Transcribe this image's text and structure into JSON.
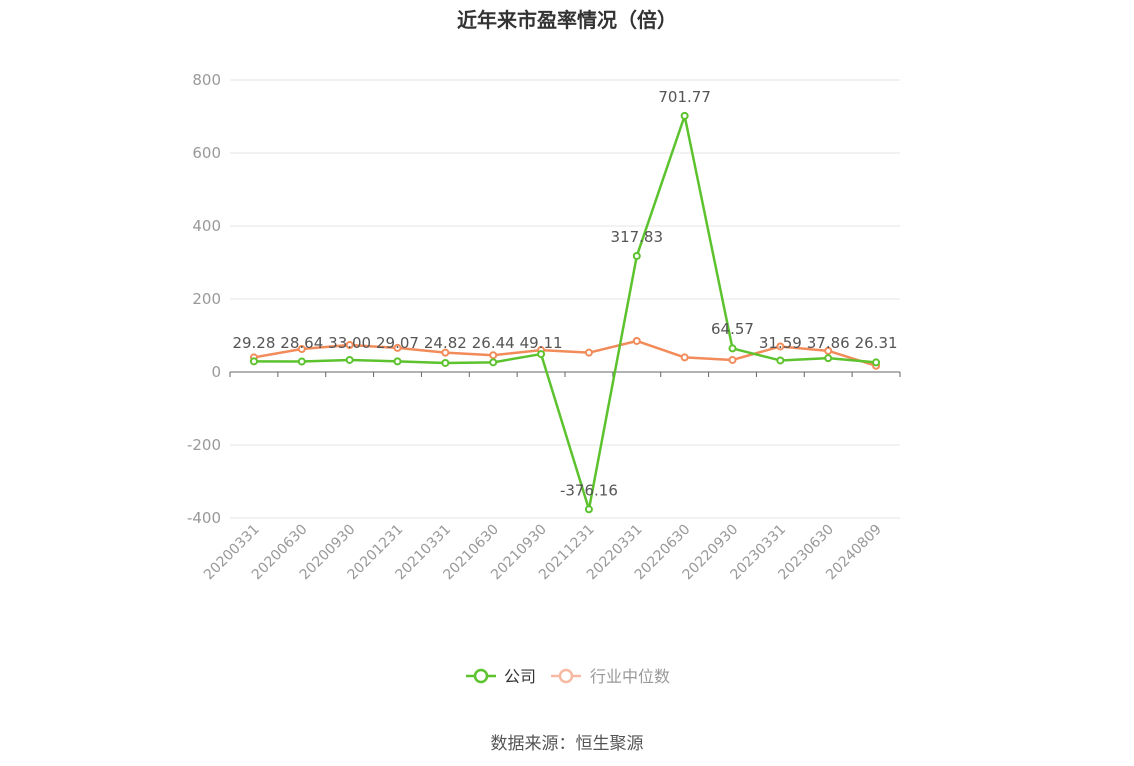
{
  "chart_data": {
    "type": "line",
    "title": "近年来市盈率情况（倍）",
    "categories": [
      "20200331",
      "20200630",
      "20200930",
      "20201231",
      "20210331",
      "20210630",
      "20210930",
      "20211231",
      "20220331",
      "20220630",
      "20220930",
      "20230331",
      "20230630",
      "20240809"
    ],
    "series": [
      {
        "name": "公司",
        "color": "#5cc22d",
        "values": [
          29.28,
          28.64,
          33.0,
          29.07,
          24.82,
          26.44,
          49.11,
          -376.16,
          317.83,
          701.77,
          64.57,
          31.59,
          37.86,
          26.31
        ],
        "labels": [
          "29.28",
          "28.64",
          "33.00",
          "29.07",
          "24.82",
          "26.44",
          "49.11",
          "-376.16",
          "317.83",
          "701.77",
          "64.57",
          "31.59",
          "37.86",
          "26.31"
        ]
      },
      {
        "name": "行业中位数",
        "color": "#f28b5a",
        "values": [
          40,
          63,
          74,
          66,
          53,
          46,
          60,
          53,
          85,
          40,
          33,
          70,
          58,
          17
        ]
      }
    ],
    "yticks": [
      800,
      600,
      400,
      200,
      0,
      -200,
      -400
    ],
    "ylim": [
      -400,
      800
    ],
    "grid": true,
    "legend": "bottom-center"
  },
  "source": "数据来源：恒生聚源"
}
